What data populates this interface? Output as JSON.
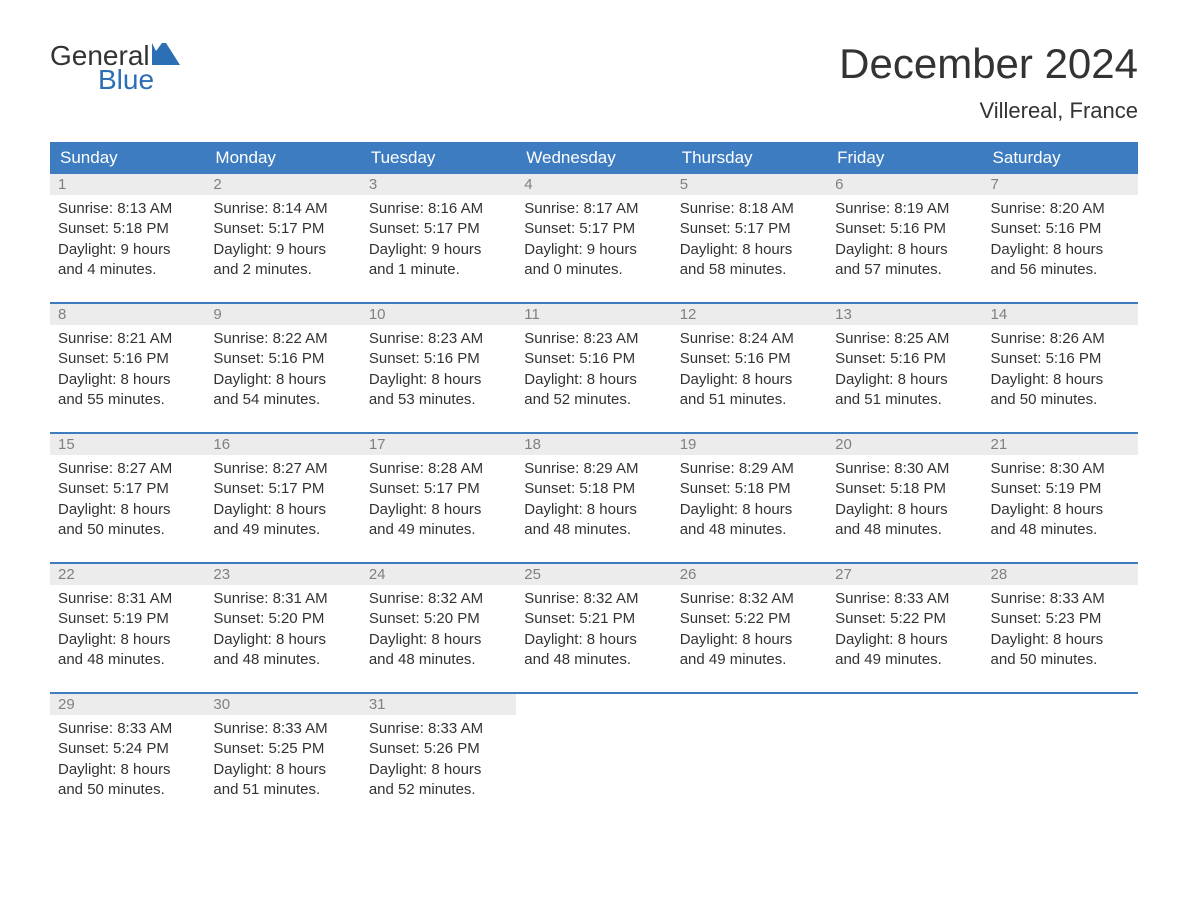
{
  "logo": {
    "word1": "General",
    "word2": "Blue"
  },
  "title": "December 2024",
  "location": "Villereal, France",
  "colors": {
    "header_bg": "#3d7cc0",
    "header_text": "#ffffff",
    "daynum_bg": "#ececec",
    "daynum_text": "#808080",
    "body_text": "#333333",
    "logo_accent": "#2d6fb5",
    "page_bg": "#ffffff"
  },
  "day_names": [
    "Sunday",
    "Monday",
    "Tuesday",
    "Wednesday",
    "Thursday",
    "Friday",
    "Saturday"
  ],
  "weeks": [
    [
      {
        "n": "1",
        "sunrise": "8:13 AM",
        "sunset": "5:18 PM",
        "dl1": "9 hours",
        "dl2": "and 4 minutes."
      },
      {
        "n": "2",
        "sunrise": "8:14 AM",
        "sunset": "5:17 PM",
        "dl1": "9 hours",
        "dl2": "and 2 minutes."
      },
      {
        "n": "3",
        "sunrise": "8:16 AM",
        "sunset": "5:17 PM",
        "dl1": "9 hours",
        "dl2": "and 1 minute."
      },
      {
        "n": "4",
        "sunrise": "8:17 AM",
        "sunset": "5:17 PM",
        "dl1": "9 hours",
        "dl2": "and 0 minutes."
      },
      {
        "n": "5",
        "sunrise": "8:18 AM",
        "sunset": "5:17 PM",
        "dl1": "8 hours",
        "dl2": "and 58 minutes."
      },
      {
        "n": "6",
        "sunrise": "8:19 AM",
        "sunset": "5:16 PM",
        "dl1": "8 hours",
        "dl2": "and 57 minutes."
      },
      {
        "n": "7",
        "sunrise": "8:20 AM",
        "sunset": "5:16 PM",
        "dl1": "8 hours",
        "dl2": "and 56 minutes."
      }
    ],
    [
      {
        "n": "8",
        "sunrise": "8:21 AM",
        "sunset": "5:16 PM",
        "dl1": "8 hours",
        "dl2": "and 55 minutes."
      },
      {
        "n": "9",
        "sunrise": "8:22 AM",
        "sunset": "5:16 PM",
        "dl1": "8 hours",
        "dl2": "and 54 minutes."
      },
      {
        "n": "10",
        "sunrise": "8:23 AM",
        "sunset": "5:16 PM",
        "dl1": "8 hours",
        "dl2": "and 53 minutes."
      },
      {
        "n": "11",
        "sunrise": "8:23 AM",
        "sunset": "5:16 PM",
        "dl1": "8 hours",
        "dl2": "and 52 minutes."
      },
      {
        "n": "12",
        "sunrise": "8:24 AM",
        "sunset": "5:16 PM",
        "dl1": "8 hours",
        "dl2": "and 51 minutes."
      },
      {
        "n": "13",
        "sunrise": "8:25 AM",
        "sunset": "5:16 PM",
        "dl1": "8 hours",
        "dl2": "and 51 minutes."
      },
      {
        "n": "14",
        "sunrise": "8:26 AM",
        "sunset": "5:16 PM",
        "dl1": "8 hours",
        "dl2": "and 50 minutes."
      }
    ],
    [
      {
        "n": "15",
        "sunrise": "8:27 AM",
        "sunset": "5:17 PM",
        "dl1": "8 hours",
        "dl2": "and 50 minutes."
      },
      {
        "n": "16",
        "sunrise": "8:27 AM",
        "sunset": "5:17 PM",
        "dl1": "8 hours",
        "dl2": "and 49 minutes."
      },
      {
        "n": "17",
        "sunrise": "8:28 AM",
        "sunset": "5:17 PM",
        "dl1": "8 hours",
        "dl2": "and 49 minutes."
      },
      {
        "n": "18",
        "sunrise": "8:29 AM",
        "sunset": "5:18 PM",
        "dl1": "8 hours",
        "dl2": "and 48 minutes."
      },
      {
        "n": "19",
        "sunrise": "8:29 AM",
        "sunset": "5:18 PM",
        "dl1": "8 hours",
        "dl2": "and 48 minutes."
      },
      {
        "n": "20",
        "sunrise": "8:30 AM",
        "sunset": "5:18 PM",
        "dl1": "8 hours",
        "dl2": "and 48 minutes."
      },
      {
        "n": "21",
        "sunrise": "8:30 AM",
        "sunset": "5:19 PM",
        "dl1": "8 hours",
        "dl2": "and 48 minutes."
      }
    ],
    [
      {
        "n": "22",
        "sunrise": "8:31 AM",
        "sunset": "5:19 PM",
        "dl1": "8 hours",
        "dl2": "and 48 minutes."
      },
      {
        "n": "23",
        "sunrise": "8:31 AM",
        "sunset": "5:20 PM",
        "dl1": "8 hours",
        "dl2": "and 48 minutes."
      },
      {
        "n": "24",
        "sunrise": "8:32 AM",
        "sunset": "5:20 PM",
        "dl1": "8 hours",
        "dl2": "and 48 minutes."
      },
      {
        "n": "25",
        "sunrise": "8:32 AM",
        "sunset": "5:21 PM",
        "dl1": "8 hours",
        "dl2": "and 48 minutes."
      },
      {
        "n": "26",
        "sunrise": "8:32 AM",
        "sunset": "5:22 PM",
        "dl1": "8 hours",
        "dl2": "and 49 minutes."
      },
      {
        "n": "27",
        "sunrise": "8:33 AM",
        "sunset": "5:22 PM",
        "dl1": "8 hours",
        "dl2": "and 49 minutes."
      },
      {
        "n": "28",
        "sunrise": "8:33 AM",
        "sunset": "5:23 PM",
        "dl1": "8 hours",
        "dl2": "and 50 minutes."
      }
    ],
    [
      {
        "n": "29",
        "sunrise": "8:33 AM",
        "sunset": "5:24 PM",
        "dl1": "8 hours",
        "dl2": "and 50 minutes."
      },
      {
        "n": "30",
        "sunrise": "8:33 AM",
        "sunset": "5:25 PM",
        "dl1": "8 hours",
        "dl2": "and 51 minutes."
      },
      {
        "n": "31",
        "sunrise": "8:33 AM",
        "sunset": "5:26 PM",
        "dl1": "8 hours",
        "dl2": "and 52 minutes."
      },
      {
        "empty": true
      },
      {
        "empty": true
      },
      {
        "empty": true
      },
      {
        "empty": true
      }
    ]
  ],
  "labels": {
    "sunrise": "Sunrise:",
    "sunset": "Sunset:",
    "daylight": "Daylight:"
  }
}
